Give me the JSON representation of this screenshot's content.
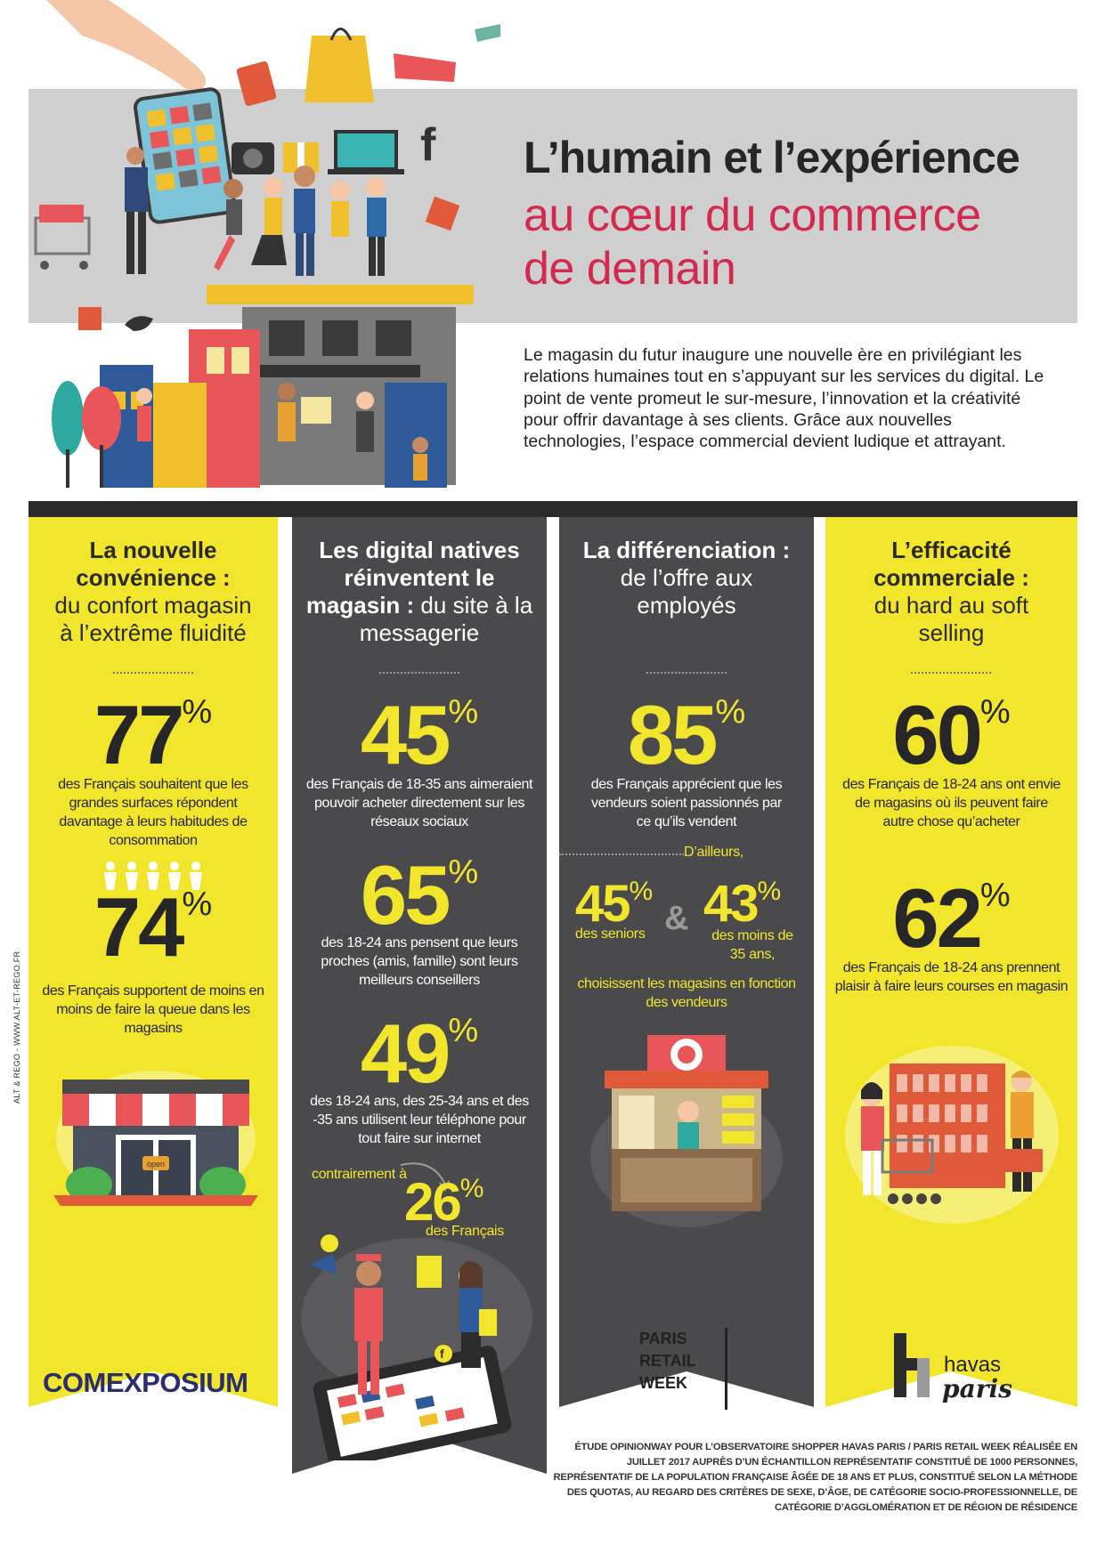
{
  "header": {
    "title_line1": "L’humain et l’expérience",
    "title_line2": "au cœur du commerce",
    "title_line3": "de demain",
    "intro": "Le magasin du futur inaugure une nouvelle ère en privilégiant les relations humaines tout en s’appuyant sur les services du digital. Le point de vente promeut le sur-mesure, l’innovation et la créativité pour offrir davantage à ses clients. Grâce aux nouvelles technologies, l’espace commercial devient ludique et attrayant."
  },
  "colors": {
    "yellow": "#f2e62c",
    "dark": "#4a4a4c",
    "accent_red": "#d4294e",
    "gray_band": "#cfcfcf"
  },
  "columns": {
    "c1": {
      "title_bold": "La nouvelle convénience :",
      "title_rest": "du confort magasin à l’extrême fluidité",
      "s1_value": "77",
      "s1_unit": "%",
      "s1_text": "des Français souhaitent que les grandes surfaces répondent davantage à leurs habitudes de consommation",
      "s2_value": "74",
      "s2_unit": "%",
      "s2_text": "des Français supportent de moins en moins de faire la queue dans les magasins",
      "shop_sign": "open"
    },
    "c2": {
      "title_bold": "Les digital natives réinventent le magasin :",
      "title_rest": "du site à la messagerie",
      "s1_value": "45",
      "s1_unit": "%",
      "s1_text": "des Français de 18-35 ans aimeraient pouvoir acheter directement sur les réseaux sociaux",
      "s2_value": "65",
      "s2_unit": "%",
      "s2_text": "des 18-24 ans pensent que leurs proches (amis, famille) sont leurs meilleurs conseillers",
      "s3_value": "49",
      "s3_unit": "%",
      "s3_text": "des 18-24 ans, des 25-34 ans et des -35 ans utilisent leur téléphone pour tout faire sur internet",
      "contrast_label": "contrairement à",
      "s4_value": "26",
      "s4_unit": "%",
      "s4_text": "des Français"
    },
    "c3": {
      "title_bold": "La différenciation :",
      "title_rest": "de l’offre aux employés",
      "s1_value": "85",
      "s1_unit": "%",
      "s1_text": "des Français apprécient que les vendeurs soient passionnés par ce qu’ils vendent",
      "ailleurs": "D’ailleurs,",
      "s2_value": "45",
      "s2_unit": "%",
      "s2_text": "des seniors",
      "amp": "&",
      "s3_value": "43",
      "s3_unit": "%",
      "s3_text": "des moins de 35 ans,",
      "conclusion": "choisissent les magasins en fonction des vendeurs"
    },
    "c4": {
      "title_bold": "L’efficacité commerciale :",
      "title_rest": "du hard au soft selling",
      "s1_value": "60",
      "s1_unit": "%",
      "s1_text": "des Français de 18-24 ans ont envie de magasins où ils peuvent faire autre chose qu’acheter",
      "s2_value": "62",
      "s2_unit": "%",
      "s2_text": "des Français de 18-24 ans prennent plaisir à faire leurs courses en magasin"
    }
  },
  "footer": {
    "credit": "ALT & REGO - WWW.ALT-ET-REGO.FR",
    "comexposium": "COMEXPOSIUM",
    "prw_l1": "PARIS",
    "prw_l2": "RETAIL",
    "prw_l3": "WEEK",
    "havas_word": "havas",
    "havas_city": "paris",
    "study": "ÉTUDE OPINIONWAY POUR L’OBSERVATOIRE SHOPPER HAVAS PARIS / PARIS RETAIL WEEK RÉALISÉE EN JUILLET 2017 AUPRÈS D’UN ÉCHANTILLON REPRÉSENTATIF CONSTITUÉ DE 1000 PERSONNES, REPRÉSENTATIF DE LA POPULATION FRANÇAISE ÂGÉE DE 18 ANS ET PLUS, CONSTITUÉ SELON LA MÉTHODE DES QUOTAS, AU REGARD DES CRITÈRES DE SEXE, D’ÂGE, DE CATÉGORIE SOCIO-PROFESSIONNELLE, DE CATÉGORIE D’AGGLOMÉRATION ET DE RÉGION DE RÉSIDENCE"
  }
}
